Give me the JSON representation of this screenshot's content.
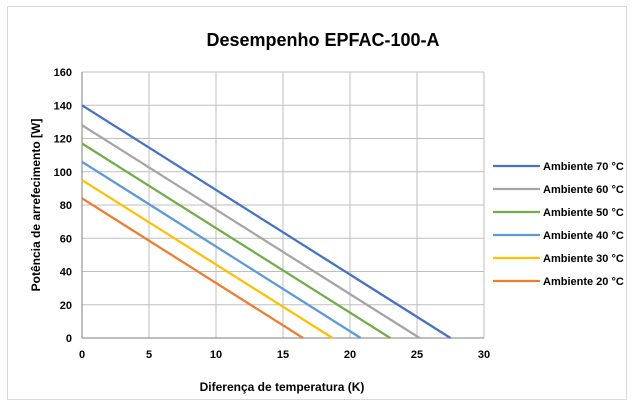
{
  "chart_data": {
    "type": "line",
    "title": "Desempenho EPFAC-100-A",
    "xlabel": "Diferença de temperatura (K)",
    "ylabel": "Potência de arrefecimento [W]",
    "xlim": [
      0,
      30
    ],
    "ylim": [
      0,
      160
    ],
    "x_ticks": [
      "0",
      "5",
      "10",
      "15",
      "20",
      "25",
      "30"
    ],
    "y_ticks": [
      "0",
      "20",
      "40",
      "60",
      "80",
      "100",
      "120",
      "140",
      "160"
    ],
    "grid": true,
    "legend_position": "right",
    "series": [
      {
        "name": "Ambiente 70 °C",
        "color": "#4472C4",
        "x": [
          0,
          27.5
        ],
        "y": [
          140,
          0
        ]
      },
      {
        "name": "Ambiente 60 °C",
        "color": "#A5A5A5",
        "x": [
          0,
          25.2
        ],
        "y": [
          128,
          0
        ]
      },
      {
        "name": "Ambiente 50 °C",
        "color": "#70AD47",
        "x": [
          0,
          23.0
        ],
        "y": [
          117,
          0
        ]
      },
      {
        "name": "Ambiente 40 °C",
        "color": "#5B9BD5",
        "x": [
          0,
          20.8
        ],
        "y": [
          106,
          0
        ]
      },
      {
        "name": "Ambiente 30 °C",
        "color": "#FFC000",
        "x": [
          0,
          18.7
        ],
        "y": [
          95,
          0
        ]
      },
      {
        "name": "Ambiente 20 °C",
        "color": "#ED7D31",
        "x": [
          0,
          16.5
        ],
        "y": [
          84,
          0
        ]
      }
    ]
  }
}
